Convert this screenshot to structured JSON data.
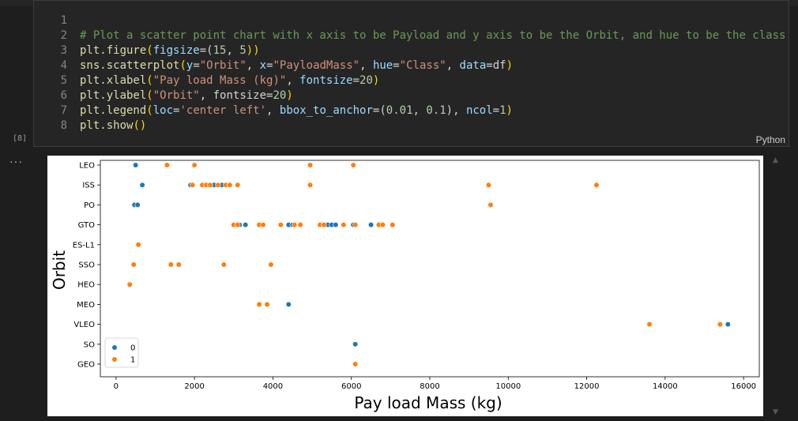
{
  "cell": {
    "exec_count": "[8]",
    "language": "Python",
    "more_menu": "···",
    "lines": [
      {
        "n": "1"
      },
      {
        "n": "2"
      },
      {
        "n": "3"
      },
      {
        "n": "4"
      },
      {
        "n": "5"
      },
      {
        "n": "6"
      },
      {
        "n": "7"
      },
      {
        "n": "8"
      }
    ],
    "code": {
      "l1": "# Plot a scatter point chart with x axis to be Payload and y axis to be the Orbit, and hue to be the class value",
      "l2a": "plt.figure",
      "l2b": "(",
      "l2c": "figsize",
      "l2d": "=(",
      "l2e": "15",
      "l2f": ", ",
      "l2g": "5",
      "l2h": "))",
      "l3a": "sns.scatterplot",
      "l3b": "(",
      "l3c": "y",
      "l3d": "=",
      "l3e": "\"Orbit\"",
      "l3f": ", ",
      "l3g": "x",
      "l3h": "=",
      "l3i": "\"PayloadMass\"",
      "l3j": ", ",
      "l3k": "hue",
      "l3l": "=",
      "l3m": "\"Class\"",
      "l3n": ", ",
      "l3o": "data",
      "l3p": "=df",
      "l3q": ")",
      "l4a": "plt.xlabel",
      "l4b": "(",
      "l4c": "\"Pay load Mass (kg)\"",
      "l4d": ", ",
      "l4e": "fontsize",
      "l4f": "=",
      "l4g": "20",
      "l4h": ")",
      "l5a": "plt.ylabel",
      "l5b": "(",
      "l5c": "\"Orbit\"",
      "l5d": ", fontsize=",
      "l5e": "20",
      "l5f": ")",
      "l6a": "plt.legend",
      "l6b": "(",
      "l6c": "loc",
      "l6d": "=",
      "l6e": "'center left'",
      "l6f": ", ",
      "l6g": "bbox_to_anchor",
      "l6h": "=(",
      "l6i": "0.01",
      "l6j": ", ",
      "l6k": "0.1",
      "l6l": "), ",
      "l6m": "ncol",
      "l6n": "=",
      "l6o": "1",
      "l6p": ")",
      "l7a": "plt.show",
      "l7b": "()"
    }
  },
  "colors": {
    "class0": "#1f77b4",
    "class1": "#ff7f0e"
  },
  "chart_data": {
    "type": "scatter",
    "xlabel": "Pay load Mass (kg)",
    "ylabel": "Orbit",
    "xlim": [
      -400,
      16400
    ],
    "xticks": [
      0,
      2000,
      4000,
      6000,
      8000,
      10000,
      12000,
      14000,
      16000
    ],
    "xtick_labels": [
      "0",
      "2000",
      "4000",
      "6000",
      "8000",
      "10000",
      "12000",
      "14000",
      "16000"
    ],
    "categories": [
      "LEO",
      "ISS",
      "PO",
      "GTO",
      "ES-L1",
      "SSO",
      "HEO",
      "MEO",
      "VLEO",
      "SO",
      "GEO"
    ],
    "legend": {
      "entries": [
        "0",
        "1"
      ],
      "placement": "lower-left"
    },
    "series": [
      {
        "name": "0",
        "points": [
          {
            "x": 500,
            "y": "LEO"
          },
          {
            "x": 670,
            "y": "ISS"
          },
          {
            "x": 1900,
            "y": "ISS"
          },
          {
            "x": 2300,
            "y": "ISS"
          },
          {
            "x": 2500,
            "y": "ISS"
          },
          {
            "x": 2700,
            "y": "ISS"
          },
          {
            "x": 470,
            "y": "PO"
          },
          {
            "x": 550,
            "y": "PO"
          },
          {
            "x": 3150,
            "y": "GTO"
          },
          {
            "x": 3300,
            "y": "GTO"
          },
          {
            "x": 4400,
            "y": "GTO"
          },
          {
            "x": 4500,
            "y": "GTO"
          },
          {
            "x": 5300,
            "y": "GTO"
          },
          {
            "x": 5400,
            "y": "GTO"
          },
          {
            "x": 5500,
            "y": "GTO"
          },
          {
            "x": 5600,
            "y": "GTO"
          },
          {
            "x": 6050,
            "y": "GTO"
          },
          {
            "x": 6500,
            "y": "GTO"
          },
          {
            "x": 6750,
            "y": "GTO"
          },
          {
            "x": 4400,
            "y": "MEO"
          },
          {
            "x": 15600,
            "y": "VLEO"
          },
          {
            "x": 6100,
            "y": "SO"
          }
        ]
      },
      {
        "name": "1",
        "points": [
          {
            "x": 1300,
            "y": "LEO"
          },
          {
            "x": 2000,
            "y": "LEO"
          },
          {
            "x": 4950,
            "y": "LEO"
          },
          {
            "x": 6050,
            "y": "LEO"
          },
          {
            "x": 1950,
            "y": "ISS"
          },
          {
            "x": 2200,
            "y": "ISS"
          },
          {
            "x": 2300,
            "y": "ISS"
          },
          {
            "x": 2400,
            "y": "ISS"
          },
          {
            "x": 2600,
            "y": "ISS"
          },
          {
            "x": 2800,
            "y": "ISS"
          },
          {
            "x": 2900,
            "y": "ISS"
          },
          {
            "x": 3100,
            "y": "ISS"
          },
          {
            "x": 4950,
            "y": "ISS"
          },
          {
            "x": 9500,
            "y": "ISS"
          },
          {
            "x": 12250,
            "y": "ISS"
          },
          {
            "x": 9550,
            "y": "PO"
          },
          {
            "x": 3000,
            "y": "GTO"
          },
          {
            "x": 3100,
            "y": "GTO"
          },
          {
            "x": 3650,
            "y": "GTO"
          },
          {
            "x": 3750,
            "y": "GTO"
          },
          {
            "x": 4200,
            "y": "GTO"
          },
          {
            "x": 4550,
            "y": "GTO"
          },
          {
            "x": 4700,
            "y": "GTO"
          },
          {
            "x": 5200,
            "y": "GTO"
          },
          {
            "x": 5300,
            "y": "GTO"
          },
          {
            "x": 5800,
            "y": "GTO"
          },
          {
            "x": 6100,
            "y": "GTO"
          },
          {
            "x": 6700,
            "y": "GTO"
          },
          {
            "x": 6800,
            "y": "GTO"
          },
          {
            "x": 7050,
            "y": "GTO"
          },
          {
            "x": 570,
            "y": "ES-L1"
          },
          {
            "x": 450,
            "y": "SSO"
          },
          {
            "x": 1400,
            "y": "SSO"
          },
          {
            "x": 1600,
            "y": "SSO"
          },
          {
            "x": 2750,
            "y": "SSO"
          },
          {
            "x": 3950,
            "y": "SSO"
          },
          {
            "x": 350,
            "y": "HEO"
          },
          {
            "x": 3650,
            "y": "MEO"
          },
          {
            "x": 3850,
            "y": "MEO"
          },
          {
            "x": 13600,
            "y": "VLEO"
          },
          {
            "x": 15400,
            "y": "VLEO"
          },
          {
            "x": 6100,
            "y": "GEO"
          }
        ]
      }
    ]
  }
}
